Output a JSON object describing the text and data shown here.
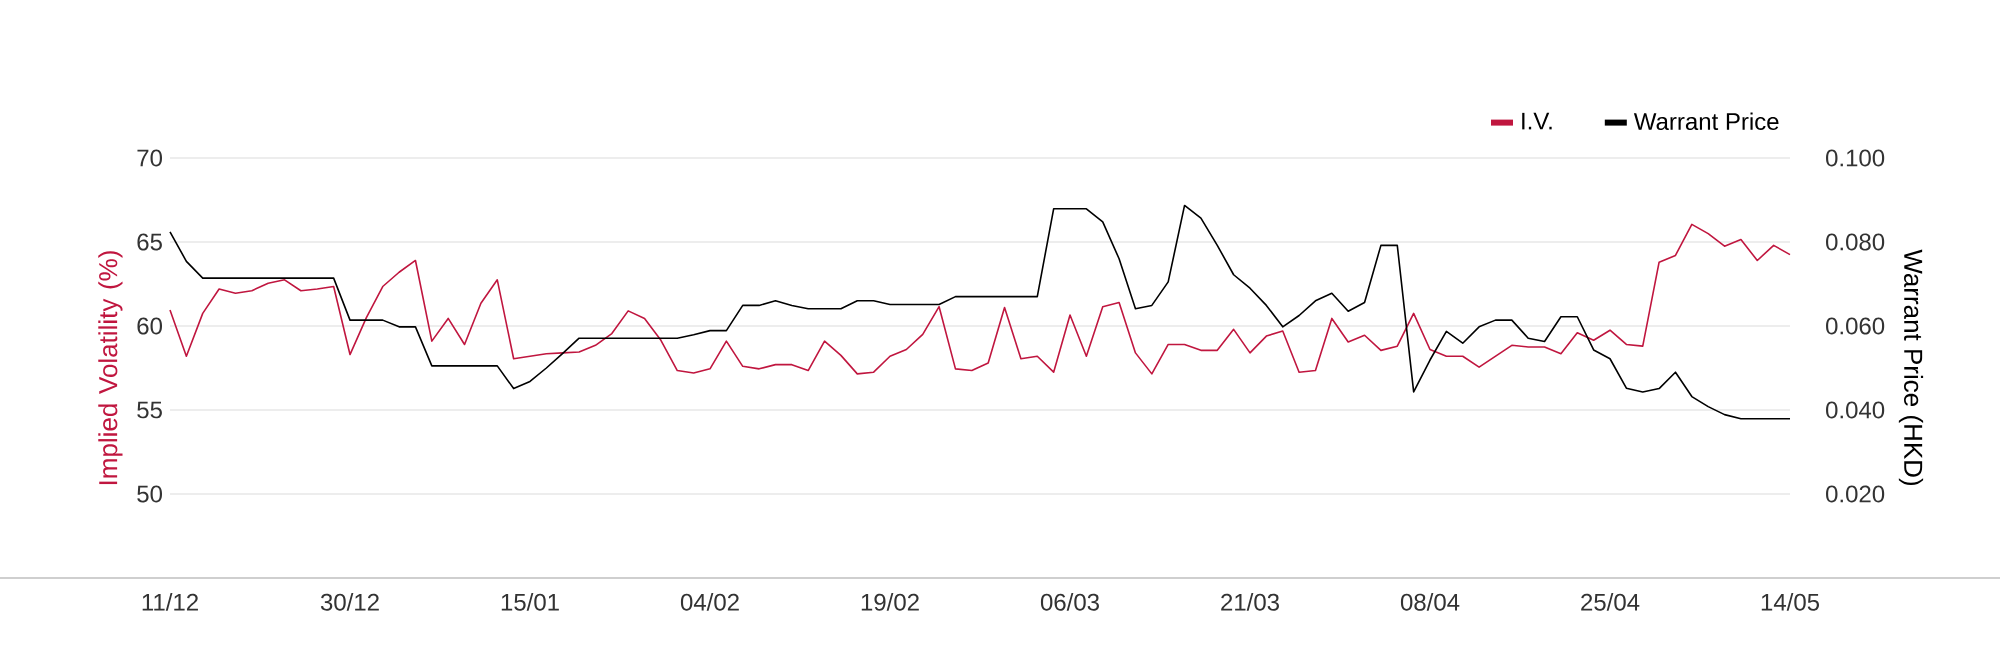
{
  "chart_data": {
    "type": "line",
    "ylabel": "Implied Volatility (%)",
    "y2label": "Warrant Price (HKD)",
    "categories": [
      "11/12",
      null,
      null,
      null,
      null,
      null,
      null,
      null,
      null,
      null,
      null,
      "30/12",
      null,
      null,
      null,
      null,
      null,
      null,
      null,
      null,
      null,
      null,
      "15/01",
      null,
      null,
      null,
      null,
      null,
      null,
      null,
      null,
      null,
      null,
      "04/02",
      null,
      null,
      null,
      null,
      null,
      null,
      null,
      null,
      null,
      null,
      "19/02",
      null,
      null,
      null,
      null,
      null,
      null,
      null,
      null,
      null,
      null,
      "06/03",
      null,
      null,
      null,
      null,
      null,
      null,
      null,
      null,
      null,
      null,
      "21/03",
      null,
      null,
      null,
      null,
      null,
      null,
      null,
      null,
      null,
      null,
      "08/04",
      null,
      null,
      null,
      null,
      null,
      null,
      null,
      null,
      null,
      null,
      "25/04",
      null,
      null,
      null,
      null,
      null,
      null,
      null,
      null,
      null,
      null,
      "14/05"
    ],
    "series": [
      {
        "name": "I.V.",
        "color": "#c0163f",
        "values": [
          60.95,
          58.2,
          60.75,
          62.2,
          61.95,
          62.1,
          62.55,
          62.75,
          62.1,
          62.2,
          62.35,
          58.3,
          60.5,
          62.35,
          63.2,
          63.9,
          59.1,
          60.45,
          58.9,
          61.35,
          62.75,
          58.05,
          58.2,
          58.35,
          58.4,
          58.45,
          58.85,
          59.55,
          60.9,
          60.45,
          59.15,
          57.35,
          57.2,
          57.45,
          59.1,
          57.6,
          57.45,
          57.7,
          57.7,
          57.35,
          59.1,
          58.25,
          57.15,
          57.25,
          58.2,
          58.6,
          59.5,
          61.15,
          57.45,
          57.35,
          57.8,
          61.1,
          58.05,
          58.2,
          57.25,
          60.65,
          58.2,
          61.15,
          61.4,
          58.4,
          57.15,
          58.9,
          58.9,
          58.55,
          58.55,
          59.8,
          58.4,
          59.4,
          59.7,
          57.25,
          57.35,
          60.45,
          59.05,
          59.45,
          58.55,
          58.8,
          60.75,
          58.6,
          58.2,
          58.2,
          57.55,
          58.2,
          58.85,
          58.75,
          58.75,
          58.35,
          59.6,
          59.15,
          59.75,
          58.9,
          58.8,
          63.8,
          64.2,
          66.05,
          65.5,
          64.75,
          65.15,
          63.9,
          64.8,
          64.25
        ]
      },
      {
        "name": "Warrant Price",
        "color": "#000000",
        "axis": "y2",
        "values": [
          0.0824,
          0.0754,
          0.0714,
          0.0714,
          0.0714,
          0.0714,
          0.0714,
          0.0714,
          0.0714,
          0.0714,
          0.0714,
          0.0614,
          0.0614,
          0.0614,
          0.0598,
          0.0598,
          0.0505,
          0.0505,
          0.0505,
          0.0505,
          0.0505,
          0.0451,
          0.0468,
          0.05,
          0.0535,
          0.0571,
          0.0571,
          0.0571,
          0.0571,
          0.0571,
          0.0571,
          0.0571,
          0.0579,
          0.0589,
          0.0589,
          0.0649,
          0.0649,
          0.066,
          0.0649,
          0.0641,
          0.0641,
          0.0641,
          0.066,
          0.066,
          0.0651,
          0.0651,
          0.0651,
          0.0651,
          0.067,
          0.067,
          0.067,
          0.067,
          0.067,
          0.067,
          0.0879,
          0.0879,
          0.0879,
          0.0848,
          0.076,
          0.0641,
          0.0649,
          0.0705,
          0.0887,
          0.0857,
          0.0792,
          0.0722,
          0.069,
          0.0649,
          0.0598,
          0.0625,
          0.066,
          0.0678,
          0.0635,
          0.0656,
          0.0792,
          0.0792,
          0.0443,
          0.0519,
          0.0587,
          0.0559,
          0.0598,
          0.0614,
          0.0614,
          0.0571,
          0.0563,
          0.0622,
          0.0622,
          0.0543,
          0.0522,
          0.0452,
          0.0443,
          0.0451,
          0.049,
          0.0432,
          0.0408,
          0.0389,
          0.0379,
          0.0379,
          0.0379,
          0.0379
        ]
      }
    ],
    "ylim": [
      45,
      70
    ],
    "yticks": [
      50,
      55,
      60,
      65,
      70
    ],
    "y2lim": [
      0,
      0.1
    ],
    "y2ticks": [
      {
        "value": 0.02,
        "label": "0.020"
      },
      {
        "value": 0.04,
        "label": "0.040"
      },
      {
        "value": 0.06,
        "label": "0.060"
      },
      {
        "value": 0.08,
        "label": "0.080"
      },
      {
        "value": 0.1,
        "label": "0.100"
      }
    ],
    "grid": "y",
    "legend": "top right"
  }
}
